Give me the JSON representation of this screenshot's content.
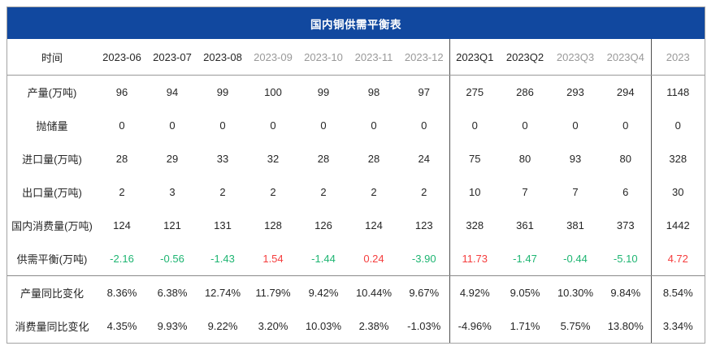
{
  "title": "国内铜供需平衡表",
  "colors": {
    "header_bg": "#11489f",
    "header_text": "#ffffff",
    "text": "#262626",
    "muted_text": "#999999",
    "green": "#1eb572",
    "red": "#f53d3d"
  },
  "chart_data": {
    "type": "table",
    "title": "国内铜供需平衡表",
    "columns": [
      {
        "label": "时间",
        "muted": false
      },
      {
        "label": "2023-06",
        "muted": false
      },
      {
        "label": "2023-07",
        "muted": false
      },
      {
        "label": "2023-08",
        "muted": false
      },
      {
        "label": "2023-09",
        "muted": true
      },
      {
        "label": "2023-10",
        "muted": true
      },
      {
        "label": "2023-11",
        "muted": true
      },
      {
        "label": "2023-12",
        "muted": true
      },
      {
        "label": "2023Q1",
        "muted": false
      },
      {
        "label": "2023Q2",
        "muted": false
      },
      {
        "label": "2023Q3",
        "muted": true
      },
      {
        "label": "2023Q4",
        "muted": true
      },
      {
        "label": "2023",
        "muted": true
      }
    ],
    "rows": [
      {
        "label": "产量(万吨)",
        "values": [
          "96",
          "94",
          "99",
          "100",
          "99",
          "98",
          "97",
          "275",
          "286",
          "293",
          "294",
          "1148"
        ]
      },
      {
        "label": "抛储量",
        "values": [
          "0",
          "0",
          "0",
          "0",
          "0",
          "0",
          "0",
          "0",
          "0",
          "0",
          "0",
          "0"
        ]
      },
      {
        "label": "进口量(万吨)",
        "values": [
          "28",
          "29",
          "33",
          "32",
          "28",
          "28",
          "24",
          "75",
          "80",
          "93",
          "80",
          "328"
        ]
      },
      {
        "label": "出口量(万吨)",
        "values": [
          "2",
          "3",
          "2",
          "2",
          "2",
          "2",
          "2",
          "10",
          "7",
          "7",
          "6",
          "30"
        ]
      },
      {
        "label": "国内消费量(万吨)",
        "values": [
          "124",
          "121",
          "131",
          "128",
          "126",
          "124",
          "123",
          "328",
          "361",
          "381",
          "373",
          "1442"
        ]
      },
      {
        "label": "供需平衡(万吨)",
        "values": [
          "-2.16",
          "-0.56",
          "-1.43",
          "1.54",
          "-1.44",
          "0.24",
          "-3.90",
          "11.73",
          "-1.47",
          "-0.44",
          "-5.10",
          "4.72"
        ],
        "colors": [
          "green",
          "green",
          "green",
          "red",
          "green",
          "red",
          "green",
          "red",
          "green",
          "green",
          "green",
          "red"
        ],
        "section_end": true
      },
      {
        "label": "产量同比变化",
        "values": [
          "8.36%",
          "6.38%",
          "12.74%",
          "11.79%",
          "9.42%",
          "10.44%",
          "9.67%",
          "4.92%",
          "9.05%",
          "10.30%",
          "9.84%",
          "8.54%"
        ]
      },
      {
        "label": "消费量同比变化",
        "values": [
          "4.35%",
          "9.93%",
          "9.22%",
          "3.20%",
          "10.03%",
          "2.38%",
          "-1.03%",
          "-4.96%",
          "1.71%",
          "5.75%",
          "13.80%",
          "3.34%"
        ]
      }
    ]
  }
}
